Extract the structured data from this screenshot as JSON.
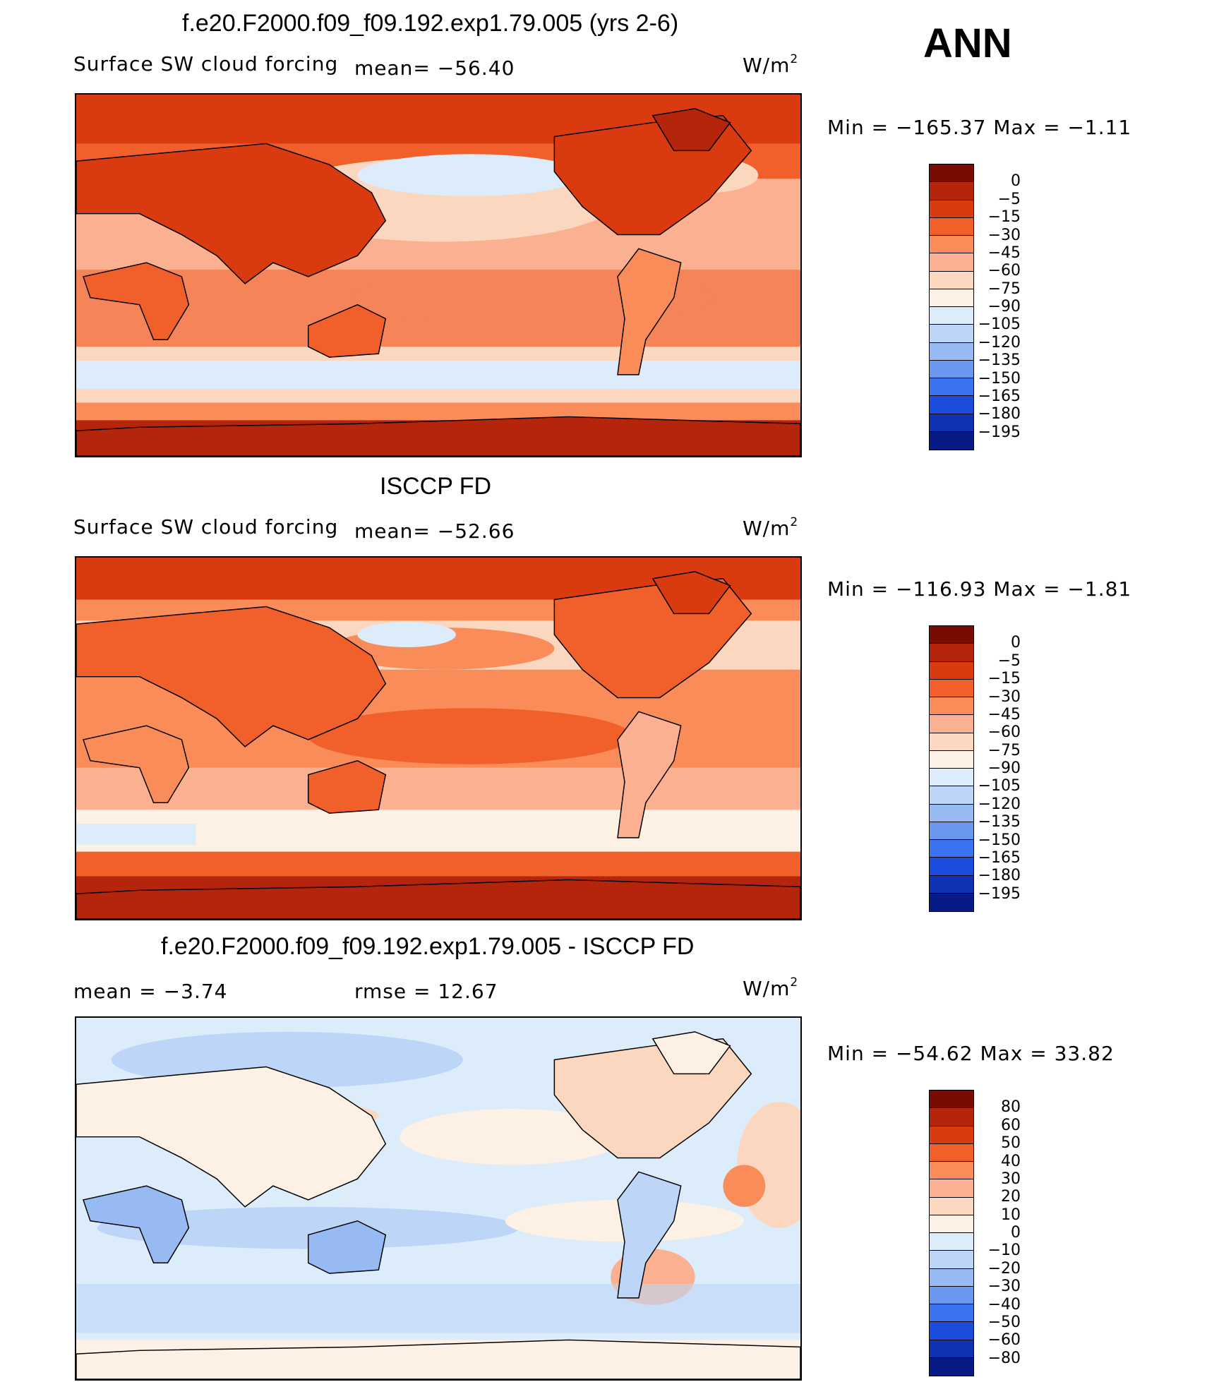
{
  "season": "ANN",
  "unit_base": "W/m",
  "unit_exp": "2",
  "palette_main": [
    "#7a0b03",
    "#b5250b",
    "#da3a0f",
    "#f15f2b",
    "#f98c59",
    "#fbb191",
    "#fcd7bf",
    "#fdf0e4",
    "#dcecfb",
    "#bdd5f7",
    "#96baf1",
    "#6b98ee",
    "#3c73f0",
    "#1a4ddd",
    "#0f31b3",
    "#071a86"
  ],
  "palette_diff": [
    "#7a0b03",
    "#b5250b",
    "#da3a0f",
    "#f15f2b",
    "#f98c59",
    "#fbb191",
    "#fcd7bf",
    "#fdf0e4",
    "#dcecfb",
    "#bdd5f7",
    "#96baf1",
    "#6b98ee",
    "#3c73f0",
    "#1a4ddd",
    "#0f31b3",
    "#071a86"
  ],
  "panels": [
    {
      "title": "f.e20.F2000.f09_f09.192.exp1.79.005 (yrs 2-6)",
      "variable": "Surface SW cloud forcing",
      "mean": "mean= −56.40",
      "minmax": "Min = −165.37 Max =  −1.11",
      "levels": [
        "0",
        "−5",
        "−15",
        "−30",
        "−45",
        "−60",
        "−75",
        "−90",
        "−105",
        "−120",
        "−135",
        "−150",
        "−165",
        "−180",
        "−195"
      ]
    },
    {
      "title": "ISCCP FD",
      "variable": "Surface SW cloud forcing",
      "mean": "mean= −52.66",
      "minmax": "Min = −116.93 Max =  −1.81",
      "levels": [
        "0",
        "−5",
        "−15",
        "−30",
        "−45",
        "−60",
        "−75",
        "−90",
        "−105",
        "−120",
        "−135",
        "−150",
        "−165",
        "−180",
        "−195"
      ]
    },
    {
      "title": "f.e20.F2000.f09_f09.192.exp1.79.005 - ISCCP FD",
      "mean": "mean =   −3.74",
      "rmse": "rmse =   12.67",
      "minmax": "Min = −54.62 Max =  33.82",
      "levels": [
        "80",
        "60",
        "50",
        "40",
        "30",
        "20",
        "10",
        "0",
        "−10",
        "−20",
        "−30",
        "−40",
        "−50",
        "−60",
        "−80"
      ]
    }
  ]
}
